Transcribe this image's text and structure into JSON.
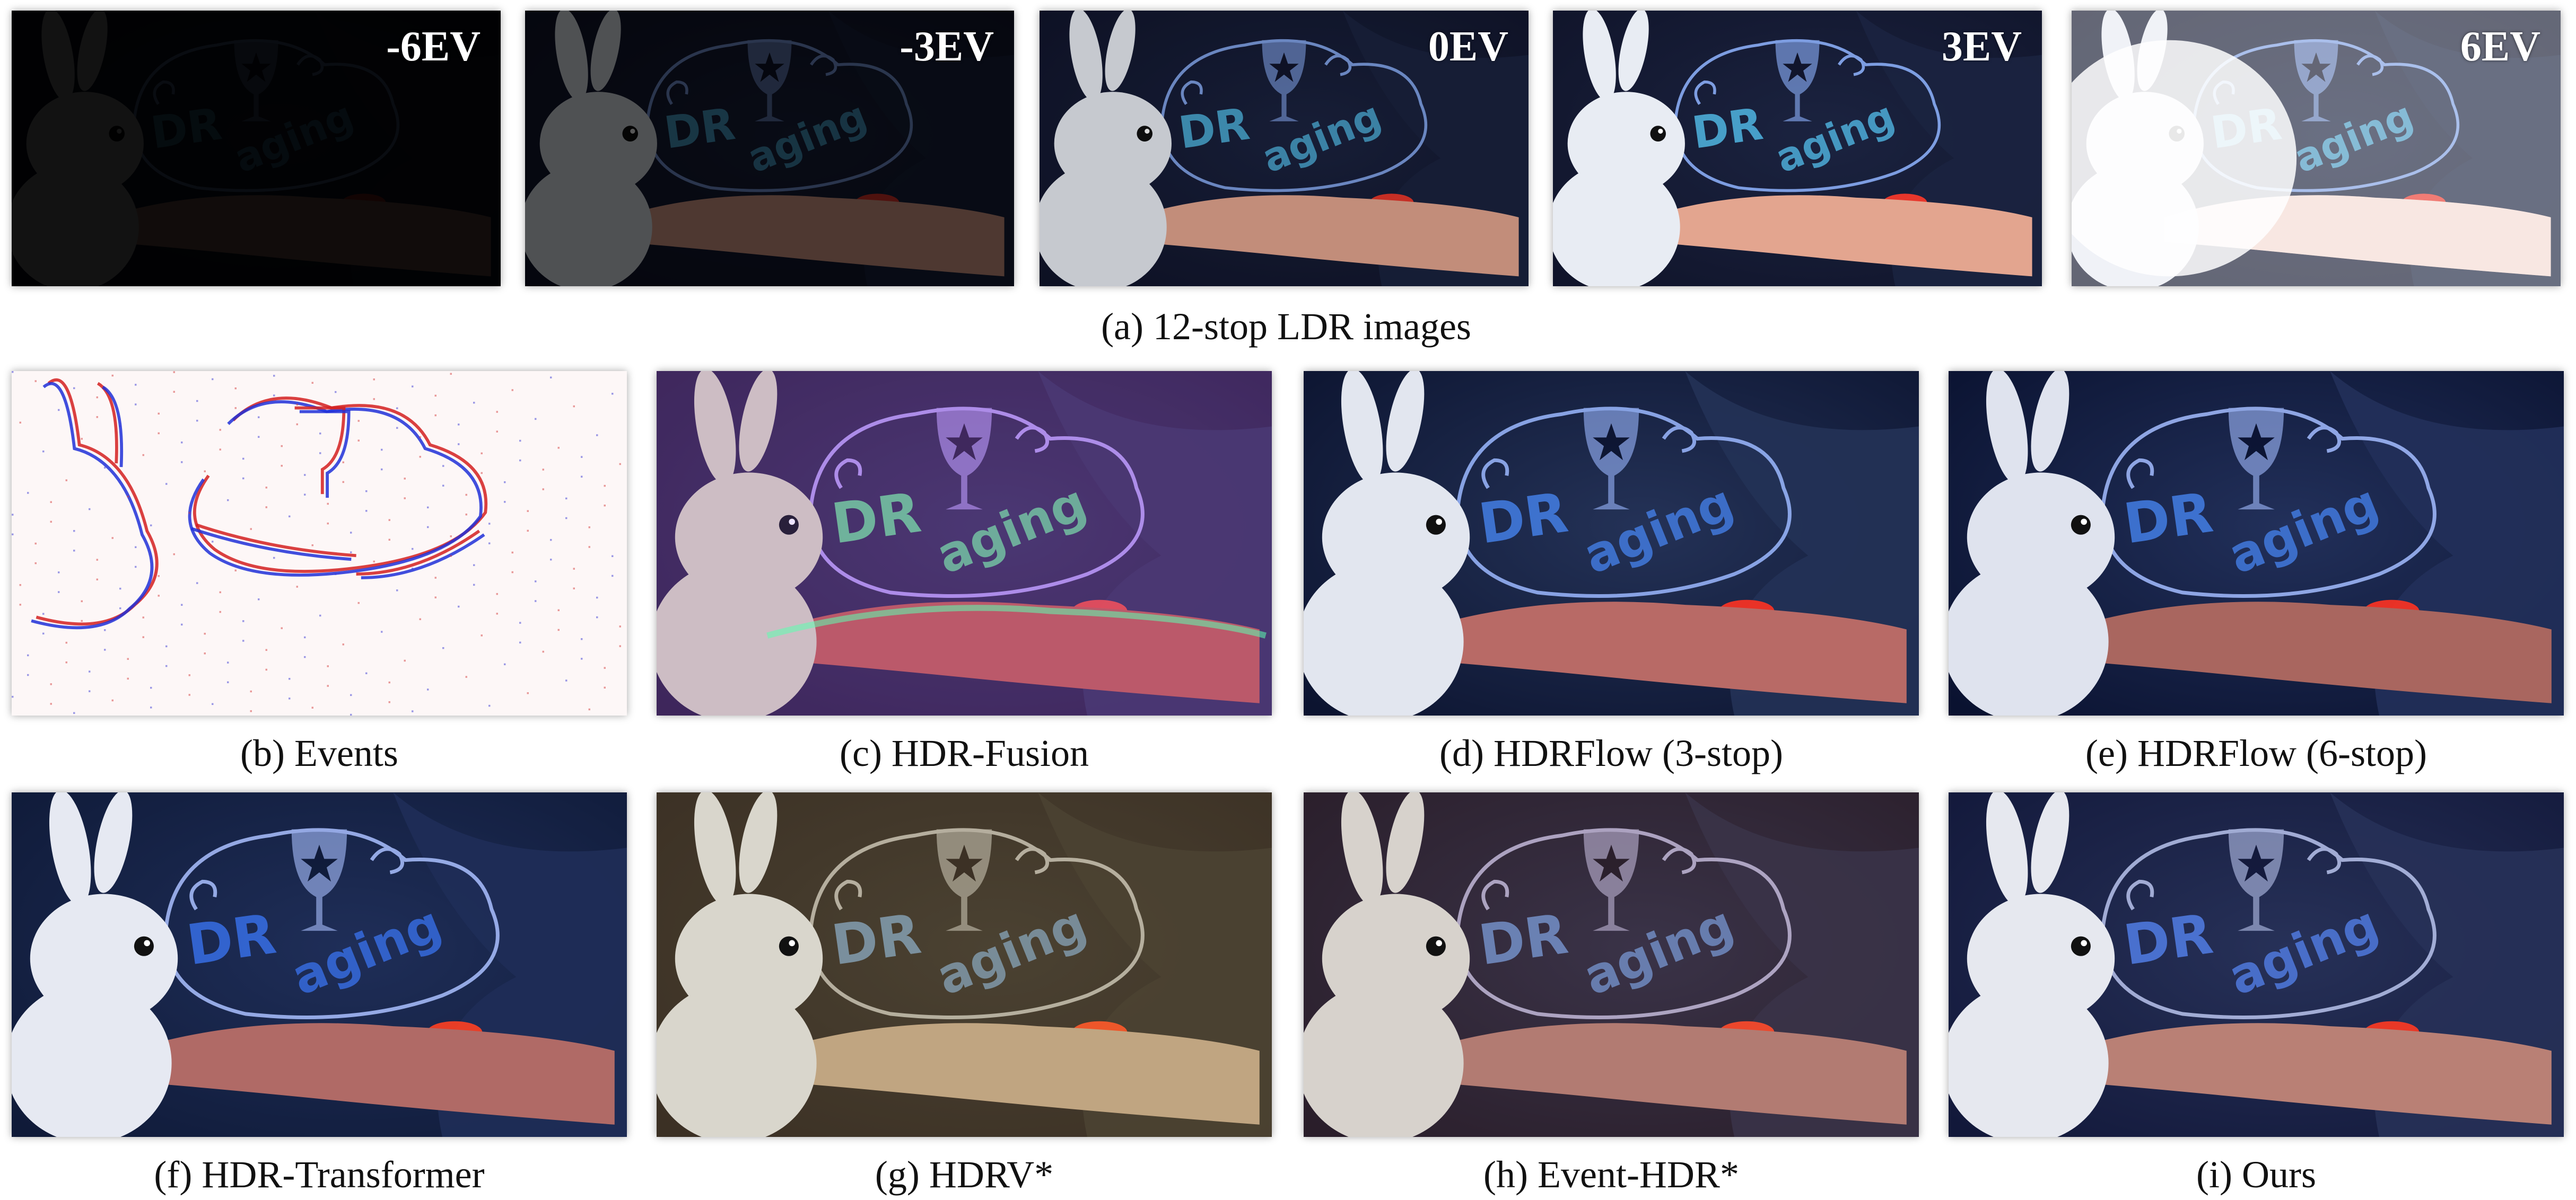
{
  "row_a": {
    "caption": "(a) 12-stop LDR images",
    "panels": [
      {
        "ev": "-6EV",
        "exposure": 0.04
      },
      {
        "ev": "-3EV",
        "exposure": 0.18
      },
      {
        "ev": "0EV",
        "exposure": 0.45
      },
      {
        "ev": "3EV",
        "exposure": 0.78
      },
      {
        "ev": "6EV",
        "exposure": 1.0
      }
    ]
  },
  "row_b": [
    {
      "id": "events",
      "caption": "(b) Events"
    },
    {
      "id": "hdr-fusion",
      "caption": "(c) HDR-Fusion"
    },
    {
      "id": "hdrflow-3",
      "caption": "(d) HDRFlow (3-stop)"
    },
    {
      "id": "hdrflow-6",
      "caption": "(e) HDRFlow (6-stop)"
    }
  ],
  "row_c": [
    {
      "id": "hdr-transformer",
      "caption": "(f) HDR-Transformer"
    },
    {
      "id": "hdrv",
      "caption": "(g) HDRV*"
    },
    {
      "id": "event-hdr",
      "caption": "(h)  Event-HDR*"
    },
    {
      "id": "ours",
      "caption": "(i)  Ours"
    }
  ],
  "scene_text": {
    "sign_line1": "DR",
    "sign_line2": "aging"
  }
}
